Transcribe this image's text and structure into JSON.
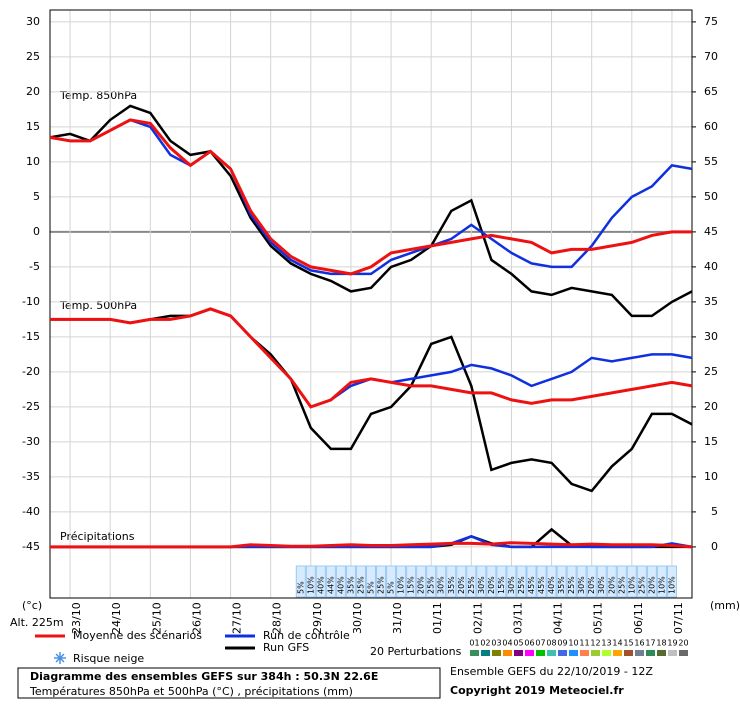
{
  "chart_data": {
    "type": "line",
    "title": "Diagramme des ensembles GEFS sur 384h : 50.3N 22.6E",
    "subtitle": "Températures 850hPa et 500hPa (°C) , précipitations (mm)",
    "ylabel": "(°c)",
    "altitude": "Alt. 225m",
    "y2label": "(mm)",
    "annotations": [
      "Temp. 850hPa",
      "Temp. 500hPa",
      "Précipitations"
    ],
    "run_info": "Ensemble GEFS du 22/10/2019 - 12Z",
    "copyright": "Copyright 2019 Meteociel.fr",
    "grid": true,
    "x": [
      0,
      12,
      24,
      36,
      48,
      60,
      72,
      84,
      96,
      108,
      120,
      132,
      144,
      156,
      168,
      180,
      192,
      204,
      216,
      228,
      240,
      252,
      264,
      276,
      288,
      300,
      312,
      324,
      336,
      348,
      360,
      372,
      384
    ],
    "xlim": [
      0,
      384
    ],
    "xticks": [
      {
        "value": 12,
        "label": "23/10"
      },
      {
        "value": 36,
        "label": "24/10"
      },
      {
        "value": 60,
        "label": "25/10"
      },
      {
        "value": 84,
        "label": "26/10"
      },
      {
        "value": 108,
        "label": "27/10"
      },
      {
        "value": 132,
        "label": "28/10"
      },
      {
        "value": 156,
        "label": "29/10"
      },
      {
        "value": 180,
        "label": "30/10"
      },
      {
        "value": 204,
        "label": "31/10"
      },
      {
        "value": 228,
        "label": "01/11"
      },
      {
        "value": 252,
        "label": "02/11"
      },
      {
        "value": 276,
        "label": "03/11"
      },
      {
        "value": 300,
        "label": "04/11"
      },
      {
        "value": 324,
        "label": "05/11"
      },
      {
        "value": 348,
        "label": "06/11"
      },
      {
        "value": 372,
        "label": "07/11"
      }
    ],
    "ylim": [
      -52.3,
      31.7
    ],
    "yticks": [
      30,
      25,
      20,
      15,
      10,
      5,
      0,
      -5,
      -10,
      -15,
      -20,
      -25,
      -30,
      -35,
      -40,
      -45
    ],
    "y2lim": [
      -7.3,
      76.7
    ],
    "y2ticks": [
      75,
      70,
      65,
      60,
      55,
      50,
      45,
      40,
      35,
      30,
      25,
      20,
      15,
      10,
      5,
      0
    ],
    "series": [
      {
        "name": "Moyenne des scénarios",
        "color": "#ee1111",
        "t850": [
          13.5,
          13,
          13,
          14.5,
          16,
          15.5,
          12,
          9.5,
          11.5,
          9,
          3,
          -1,
          -3.5,
          -5,
          -5.5,
          -6,
          -5,
          -3,
          -2.5,
          -2,
          -1.5,
          -1,
          -0.5,
          -1,
          -1.5,
          -3,
          -2.5,
          -2.5,
          -2,
          -1.5,
          -0.5,
          0,
          0
        ],
        "t500": [
          -12.5,
          -12.5,
          -12.5,
          -12.5,
          -13,
          -12.5,
          -12.5,
          -12,
          -11,
          -12,
          -15,
          -18,
          -21,
          -25,
          -24,
          -21.5,
          -21,
          -21.5,
          -22,
          -22,
          -22.5,
          -23,
          -23,
          -24,
          -24.5,
          -24,
          -24,
          -23.5,
          -23,
          -22.5,
          -22,
          -21.5,
          -22
        ],
        "precip": [
          0,
          0,
          0,
          0,
          0,
          0,
          0,
          0,
          0,
          0,
          0.3,
          0.2,
          0.1,
          0.1,
          0.2,
          0.3,
          0.2,
          0.2,
          0.3,
          0.4,
          0.5,
          0.5,
          0.4,
          0.6,
          0.5,
          0.4,
          0.3,
          0.4,
          0.3,
          0.3,
          0.3,
          0.2,
          0
        ]
      },
      {
        "name": "Run de contrôle",
        "color": "#1030e0",
        "t850": [
          13.5,
          13,
          13,
          14.5,
          16,
          15,
          11,
          9.5,
          11.5,
          9,
          2.5,
          -1.5,
          -4,
          -5.5,
          -6,
          -6,
          -6,
          -4,
          -3,
          -2,
          -1,
          1,
          -1,
          -3,
          -4.5,
          -5,
          -5,
          -2,
          2,
          5,
          6.5,
          9.5,
          9
        ],
        "t500": [
          -12.5,
          -12.5,
          -12.5,
          -12.5,
          -13,
          -12.5,
          -12.5,
          -12,
          -11,
          -12,
          -15,
          -18,
          -21,
          -25,
          -24,
          -22,
          -21,
          -21.5,
          -21,
          -20.5,
          -20,
          -19,
          -19.5,
          -20.5,
          -22,
          -21,
          -20,
          -18,
          -18.5,
          -18,
          -17.5,
          -17.5,
          -18
        ],
        "precip": [
          0,
          0,
          0,
          0,
          0,
          0,
          0,
          0,
          0,
          0,
          0,
          0,
          0,
          0,
          0,
          0,
          0,
          0,
          0,
          0,
          0.5,
          1.5,
          0.3,
          0,
          0,
          0,
          0,
          0,
          0,
          0,
          0,
          0.5,
          0
        ]
      },
      {
        "name": "Run GFS",
        "color": "#000000",
        "t850": [
          13.5,
          14,
          13,
          16,
          18,
          17,
          13,
          11,
          11.5,
          8,
          2,
          -2,
          -4.5,
          -6,
          -7,
          -8.5,
          -8,
          -5,
          -4,
          -2,
          3,
          4.5,
          -4,
          -6,
          -8.5,
          -9,
          -8,
          -8.5,
          -9,
          -12,
          -12,
          -10,
          -8.5
        ],
        "t500": [
          -12.5,
          -12.5,
          -12.5,
          -12.5,
          -13,
          -12.5,
          -12,
          -12,
          -11,
          -12,
          -15,
          -17.5,
          -21,
          -28,
          -31,
          -31,
          -26,
          -25,
          -22,
          -16,
          -15,
          -22,
          -34,
          -33,
          -32.5,
          -33,
          -36,
          -37,
          -33.5,
          -31,
          -26,
          -26,
          -27.5
        ],
        "precip": [
          0,
          0,
          0,
          0,
          0,
          0,
          0,
          0,
          0,
          0,
          0,
          0,
          0,
          0,
          0,
          0,
          0,
          0,
          0,
          0,
          0.3,
          1.5,
          0.5,
          0,
          0,
          2.5,
          0.2,
          0,
          0,
          0,
          0,
          0,
          0
        ]
      }
    ],
    "snow_risk": {
      "name": "Risque neige",
      "x": [
        150,
        156,
        162,
        168,
        174,
        180,
        186,
        192,
        198,
        204,
        210,
        216,
        222,
        228,
        234,
        240,
        246,
        252,
        258,
        264,
        270,
        276,
        282,
        288,
        294,
        300,
        306,
        312,
        318,
        324,
        330,
        336,
        342,
        348,
        354,
        360,
        366,
        372
      ],
      "values": [
        5,
        10,
        40,
        44,
        40,
        35,
        25,
        5,
        25,
        5,
        10,
        15,
        20,
        25,
        30,
        35,
        20,
        25,
        30,
        20,
        15,
        30,
        25,
        45,
        45,
        40,
        35,
        25,
        30,
        20,
        30,
        20,
        25,
        10,
        25,
        20,
        10,
        10
      ],
      "value_labels": [
        "5%",
        "10%",
        "40%",
        "44%",
        "40%",
        "35%",
        "25%",
        "5%",
        "25%",
        "5%",
        "10%",
        "15%",
        "20%",
        "25%",
        "30%",
        "35%",
        "20%",
        "25%",
        "30%",
        "20%",
        "15%",
        "30%",
        "25%",
        "45%",
        "45%",
        "40%",
        "35%",
        "25%",
        "30%",
        "20%",
        "30%",
        "20%",
        "25%",
        "10%",
        "25%",
        "20%",
        "10%",
        "10%"
      ]
    },
    "perturbations": {
      "name": "20 Perturbations",
      "labels": [
        "01",
        "02",
        "03",
        "04",
        "05",
        "06",
        "07",
        "08",
        "09",
        "10",
        "11",
        "12",
        "13",
        "14",
        "15",
        "16",
        "17",
        "18",
        "19",
        "20"
      ],
      "colors": [
        "#3c8c5c",
        "#008080",
        "#808000",
        "#ff8c00",
        "#800080",
        "#ff00ff",
        "#00c000",
        "#40c0b0",
        "#4169e1",
        "#1e90ff",
        "#ff7f50",
        "#9acd32",
        "#adff2f",
        "#ffa500",
        "#a0522d",
        "#708090",
        "#2e8b57",
        "#556b2f",
        "#c0c0c0",
        "#696969"
      ]
    }
  }
}
